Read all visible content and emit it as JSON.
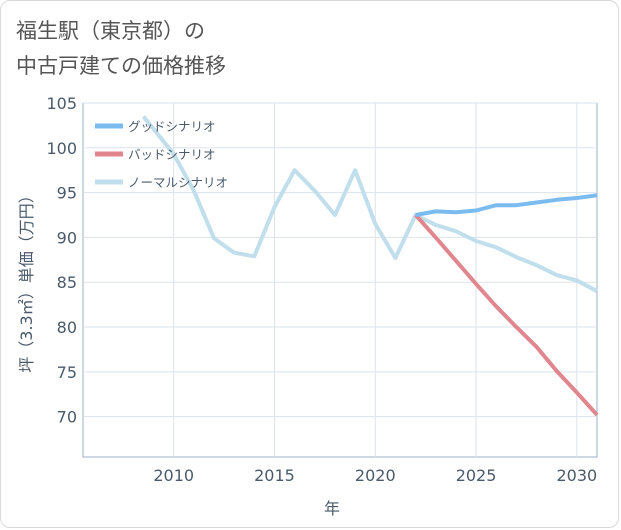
{
  "chart_data": {
    "type": "line",
    "title_lines": [
      "福生駅（東京都）の",
      "中古戸建ての価格推移"
    ],
    "xlabel": "年",
    "ylabel": "坪（3.3㎡）単価（万円）",
    "xlim": [
      2005.5,
      2031
    ],
    "ylim": [
      65.5,
      105
    ],
    "xticks": [
      2010,
      2015,
      2020,
      2025,
      2030
    ],
    "yticks": [
      70,
      75,
      80,
      85,
      90,
      95,
      100,
      105
    ],
    "grid": true,
    "legend_position": "top-left",
    "series": [
      {
        "name": "グッドシナリオ",
        "color": "#7bbcf0",
        "x": [
          2022,
          2023,
          2024,
          2025,
          2026,
          2027,
          2028,
          2029,
          2030,
          2031
        ],
        "y": [
          92.5,
          92.9,
          92.8,
          93.0,
          93.6,
          93.6,
          93.9,
          94.2,
          94.4,
          94.7
        ]
      },
      {
        "name": "バッドシナリオ",
        "color": "#e0868f",
        "x": [
          2022,
          2023,
          2024,
          2025,
          2026,
          2027,
          2028,
          2029,
          2030,
          2031
        ],
        "y": [
          92.5,
          90.0,
          87.4,
          84.8,
          82.3,
          80.0,
          77.8,
          75.1,
          72.7,
          70.2
        ]
      },
      {
        "name": "ノーマルシナリオ",
        "color": "#c0deec",
        "x": [
          2008.5,
          2010,
          2011,
          2012,
          2013,
          2014,
          2015,
          2016,
          2017,
          2018,
          2019,
          2020,
          2021,
          2022,
          2023,
          2024,
          2025,
          2026,
          2027,
          2028,
          2029,
          2030,
          2031
        ],
        "y": [
          103.5,
          99.3,
          95.2,
          89.9,
          88.3,
          87.9,
          93.4,
          97.5,
          95.2,
          92.5,
          97.5,
          91.5,
          87.7,
          92.5,
          91.4,
          90.7,
          89.6,
          88.9,
          87.8,
          86.9,
          85.8,
          85.2,
          84.0
        ]
      }
    ]
  }
}
